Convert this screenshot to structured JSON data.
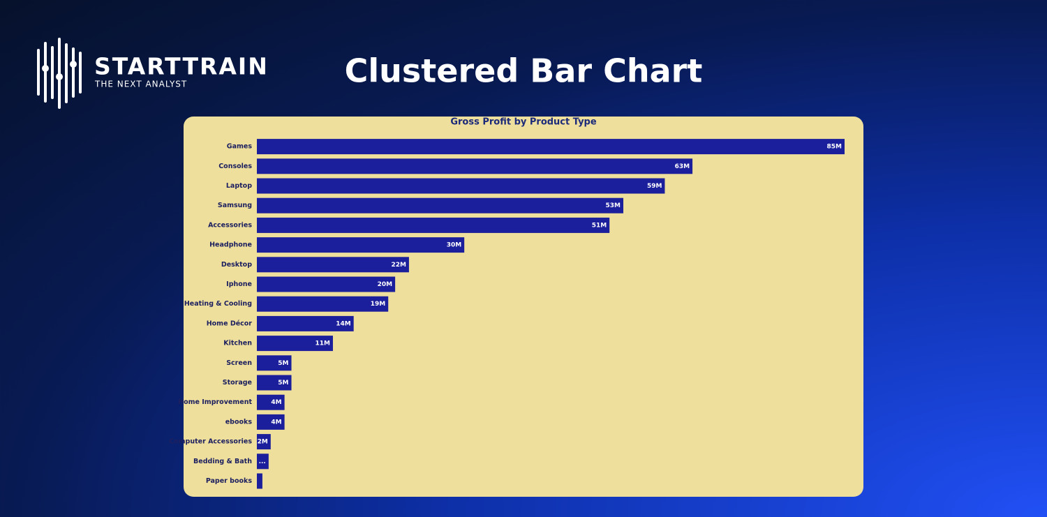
{
  "header": {
    "logo": {
      "name": "STARTTRAIN",
      "tagline": "THE NEXT ANALYST"
    },
    "title": "Clustered Bar Chart"
  },
  "chart_data": {
    "type": "hbar",
    "title": "Gross Profit by Product Type",
    "color": "#1b1f9b",
    "categories": [
      "Games",
      "Consoles",
      "Laptop",
      "Samsung",
      "Accessories",
      "Headphone",
      "Desktop",
      "Iphone",
      "Heating & Cooling",
      "Home Décor",
      "Kitchen",
      "Screen",
      "Storage",
      "Home Improvement",
      "ebooks",
      "Computer Accessories",
      "Bedding & Bath",
      "Paper books"
    ],
    "values": [
      85,
      63,
      59,
      53,
      51,
      30,
      22,
      20,
      19,
      14,
      11,
      5,
      5,
      4,
      4,
      2,
      1.7,
      0.8
    ],
    "value_labels": [
      "85M",
      "63M",
      "59M",
      "53M",
      "51M",
      "30M",
      "22M",
      "20M",
      "19M",
      "14M",
      "11M",
      "5M",
      "5M",
      "4M",
      "4M",
      "2M",
      "...",
      null
    ]
  }
}
